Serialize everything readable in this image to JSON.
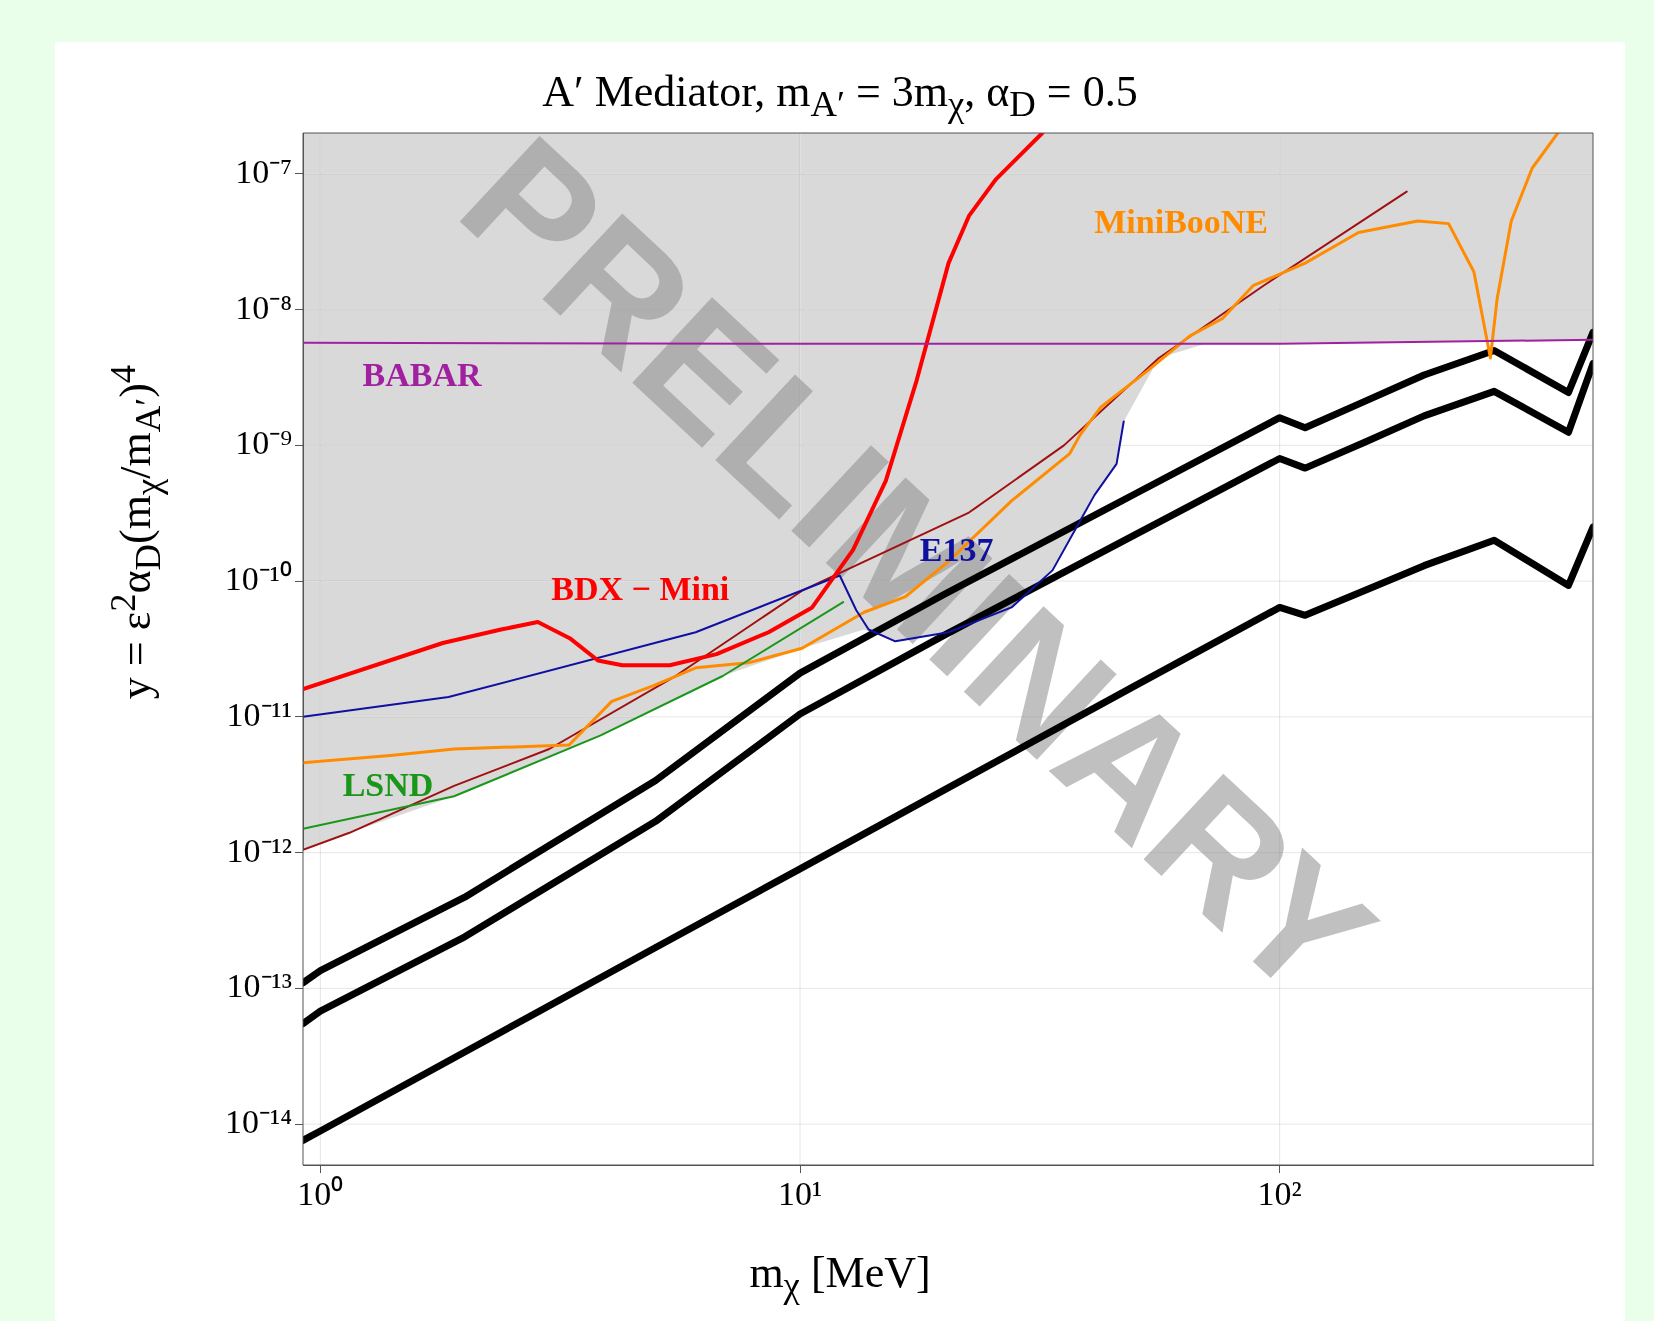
{
  "chart_data": {
    "type": "line",
    "title": "A′  Mediator,  m$_{A′}$ = 3m$_{χ}$,  α$_{D}$ = 0.5",
    "xlabel": "m$_{χ}$ [MeV]",
    "ylabel": "y = ε$^{2}$α$_{D}$(m$_{χ}$/m$_{A′}$)$^{4}$",
    "log": "xy",
    "grid": true,
    "legend": false,
    "marker": "none",
    "line_style": "solid",
    "xlim": [
      0.92,
      450
    ],
    "ylim": [
      5e-15,
      2e-07
    ],
    "xticks": [
      {
        "value": 1,
        "label": "10⁰"
      },
      {
        "value": 10,
        "label": "10¹"
      },
      {
        "value": 100,
        "label": "10²"
      }
    ],
    "yticks": [
      {
        "value": 1e-14,
        "label": "10⁻¹⁴"
      },
      {
        "value": 1e-13,
        "label": "10⁻¹³"
      },
      {
        "value": 1e-12,
        "label": "10⁻¹²"
      },
      {
        "value": 1e-11,
        "label": "10⁻¹¹"
      },
      {
        "value": 1e-10,
        "label": "10⁻¹⁰"
      },
      {
        "value": 1e-09,
        "label": "10⁻⁹"
      },
      {
        "value": 1e-08,
        "label": "10⁻⁸"
      },
      {
        "value": 1e-07,
        "label": "10⁻⁷"
      }
    ],
    "annotations": [
      "PRELIMINARY"
    ],
    "series": [
      {
        "type": "area",
        "color": "#ffffff",
        "x": [
          0.92,
          1.15,
          1.9,
          3.84,
          6.9,
          10.1,
          13.6,
          15.8,
          20.4,
          27.6,
          33.6,
          41.1,
          45.7,
          47.3,
          56,
          70,
          450
        ],
        "values": [
          1.05e-12,
          1.4e-12,
          2.6e-12,
          7.3e-12,
          2e-11,
          3.2e-11,
          4.4e-11,
          3.6e-11,
          4.2e-11,
          6.4e-11,
          1.2e-10,
          4.3e-10,
          7.3e-10,
          1.5e-09,
          4.4e-09,
          5.6e-09,
          6e-09
        ]
      },
      {
        "color": "#000000",
        "x": [
          0.92,
          1,
          2,
          5,
          10,
          20,
          50,
          100,
          113,
          150,
          200,
          280,
          400,
          450
        ],
        "values": [
          1.1e-13,
          1.35e-13,
          4.7e-13,
          3.4e-12,
          2.1e-11,
          8e-11,
          4.4e-10,
          1.6e-09,
          1.35e-09,
          2.1e-09,
          3.3e-09,
          5e-09,
          2.45e-09,
          6.8e-09
        ]
      },
      {
        "color": "#000000",
        "x": [
          0.92,
          1,
          2,
          5,
          10,
          20,
          50,
          100,
          113,
          150,
          200,
          280,
          400,
          450
        ],
        "values": [
          5.5e-14,
          6.8e-14,
          2.4e-13,
          1.7e-12,
          1.05e-11,
          4e-11,
          2.2e-10,
          8e-10,
          6.8e-10,
          1.05e-09,
          1.65e-09,
          2.5e-09,
          1.25e-09,
          4e-09
        ]
      },
      {
        "color": "#000000",
        "x": [
          0.92,
          1,
          2,
          5,
          10,
          20,
          50,
          100,
          113,
          150,
          200,
          280,
          400,
          450
        ],
        "values": [
          7.6e-15,
          8.9e-15,
          3.4e-14,
          2e-13,
          7.6e-13,
          2.9e-12,
          1.7e-11,
          6.4e-11,
          5.6e-11,
          8.5e-11,
          1.3e-10,
          2e-10,
          9.3e-11,
          2.5e-10
        ]
      },
      {
        "name": "BABAR",
        "color": "#a020a0",
        "x": [
          0.92,
          10,
          100,
          450
        ],
        "values": [
          5.7e-09,
          5.6e-09,
          5.6e-09,
          6e-09
        ]
      },
      {
        "name": "BDX − Mini",
        "color": "#ff0000",
        "x": [
          0.92,
          1.8,
          2.38,
          2.84,
          3.31,
          3.79,
          4.26,
          5.35,
          6.7,
          8.6,
          10.6,
          12.9,
          15.1,
          17.5,
          20.4,
          22.5,
          25.6,
          32
        ],
        "values": [
          1.6e-11,
          3.5e-11,
          4.4e-11,
          5e-11,
          3.8e-11,
          2.6e-11,
          2.4e-11,
          2.4e-11,
          2.9e-11,
          4.2e-11,
          6.4e-11,
          1.7e-10,
          5.5e-10,
          3e-09,
          2.2e-08,
          4.9e-08,
          9.1e-08,
          2e-07
        ]
      },
      {
        "name": "E137",
        "color": "#1010a0",
        "x": [
          0.92,
          1.85,
          6.06,
          12.1,
          13.1,
          13.9,
          15.8,
          20.4,
          27.6,
          33.6,
          41.1,
          45.7,
          47.3
        ],
        "values": [
          1e-11,
          1.4e-11,
          4.2e-11,
          1.1e-10,
          6.1e-11,
          4.4e-11,
          3.6e-11,
          4.2e-11,
          6.4e-11,
          1.2e-10,
          4.3e-10,
          7.3e-10,
          1.5e-09
        ]
      },
      {
        "name": "LSND",
        "color": "#1a961a",
        "x": [
          0.92,
          1.9,
          3.84,
          6.9,
          12.3
        ],
        "values": [
          1.5e-12,
          2.6e-12,
          7.3e-12,
          2e-11,
          7e-11
        ]
      },
      {
        "name": "MiniBooNE",
        "color": "#ff8c00",
        "x": [
          0.92,
          1.4,
          1.9,
          3.3,
          4.05,
          4.95,
          6.06,
          7.8,
          10.1,
          13.6,
          16.6,
          20.4,
          27.6,
          36.5,
          38.4,
          42.3,
          53.3,
          65,
          76,
          88,
          113,
          146,
          194,
          225,
          254,
          275,
          284,
          304,
          336,
          380
        ],
        "values": [
          4.6e-12,
          5.2e-12,
          5.8e-12,
          6.2e-12,
          1.3e-11,
          1.7e-11,
          2.3e-11,
          2.5e-11,
          3.2e-11,
          5.9e-11,
          7.7e-11,
          1.4e-10,
          3.9e-10,
          8.7e-10,
          1.2e-09,
          1.9e-09,
          3.6e-09,
          6.4e-09,
          8.6e-09,
          1.5e-08,
          2.2e-08,
          3.7e-08,
          4.5e-08,
          4.3e-08,
          1.9e-08,
          4.4e-09,
          1.2e-08,
          4.5e-08,
          1.1e-07,
          2e-07
        ]
      },
      {
        "color": "#a01010",
        "x": [
          0.92,
          1.15,
          1.9,
          3,
          5.5,
          10.1,
          22.5,
          35.5,
          56,
          92.5,
          184
        ],
        "values": [
          1.05e-12,
          1.4e-12,
          3.1e-12,
          5.8e-12,
          2e-11,
          8.5e-11,
          3.2e-10,
          1e-09,
          4.4e-09,
          1.5e-08,
          7.4e-08
        ]
      }
    ]
  }
}
